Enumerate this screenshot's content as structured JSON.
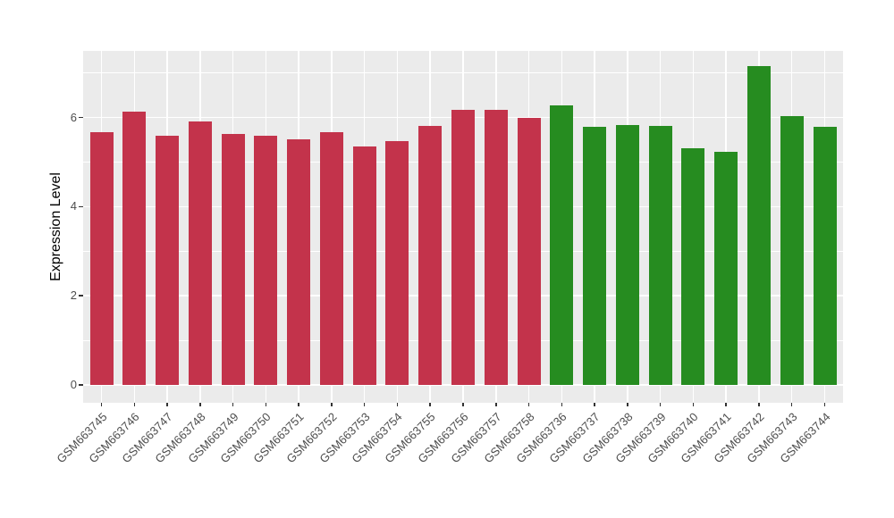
{
  "chart_data": {
    "type": "bar",
    "title": "",
    "xlabel": "",
    "ylabel": "Expression Level",
    "categories": [
      "GSM663745",
      "GSM663746",
      "GSM663747",
      "GSM663748",
      "GSM663749",
      "GSM663750",
      "GSM663751",
      "GSM663752",
      "GSM663753",
      "GSM663754",
      "GSM663755",
      "GSM663756",
      "GSM663757",
      "GSM663758",
      "GSM663736",
      "GSM663737",
      "GSM663738",
      "GSM663739",
      "GSM663740",
      "GSM663741",
      "GSM663742",
      "GSM663743",
      "GSM663744"
    ],
    "values": [
      5.68,
      6.13,
      5.59,
      5.91,
      5.64,
      5.6,
      5.51,
      5.68,
      5.36,
      5.48,
      5.81,
      6.17,
      6.17,
      6.0,
      6.28,
      5.8,
      5.83,
      5.81,
      5.32,
      5.23,
      7.15,
      6.03,
      5.8
    ],
    "bar_colors": [
      "#C3334B",
      "#C3334B",
      "#C3334B",
      "#C3334B",
      "#C3334B",
      "#C3334B",
      "#C3334B",
      "#C3334B",
      "#C3334B",
      "#C3334B",
      "#C3334B",
      "#C3334B",
      "#C3334B",
      "#C3334B",
      "#268C20",
      "#268C20",
      "#268C20",
      "#268C20",
      "#268C20",
      "#268C20",
      "#268C20",
      "#268C20",
      "#268C20"
    ],
    "groups": [
      {
        "color": "#C3334B",
        "count": 14
      },
      {
        "color": "#268C20",
        "count": 9
      }
    ],
    "ylim": [
      -0.4,
      7.5
    ],
    "yticks": [
      0,
      2,
      4,
      6
    ],
    "ytick_labels": [
      "0",
      "2",
      "4",
      "6"
    ],
    "minor_gridlines": [
      1,
      3,
      5,
      7
    ],
    "grid": true,
    "legend": "none",
    "style": {
      "panel_background": "#EBEBEB",
      "figure_background": "#FFFFFF",
      "gridline_color": "#FFFFFF",
      "tick_label_color": "#4D4D4D",
      "tick_mark_color": "#333333",
      "axis_title_color": "#000000"
    }
  }
}
